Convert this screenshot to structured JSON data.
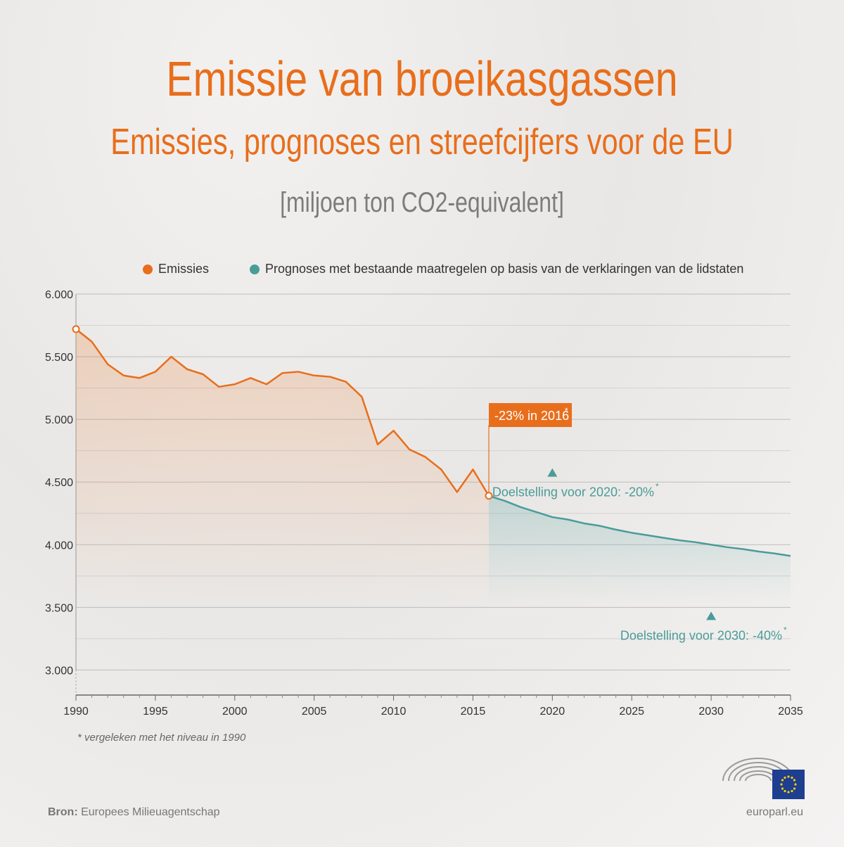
{
  "title": "Emissie van broeikasgassen",
  "subtitle": "Emissies, prognoses en streefcijfers voor de EU",
  "unit_label": "[miljoen ton CO2-equivalent]",
  "footnote": "* vergeleken met het niveau in 1990",
  "source_label": "Bron:",
  "source_value": "Europees Milieuagentschap",
  "website": "europarl.eu",
  "colors": {
    "emissions": "#e86e1c",
    "projection": "#4a9c99",
    "title": "#e86e1c",
    "unit": "#7c7c7c"
  },
  "chart_data": {
    "type": "line",
    "xlim": [
      1990,
      2035
    ],
    "ylim": [
      2800,
      6000
    ],
    "x_ticks": [
      "1990",
      "1995",
      "2000",
      "2005",
      "2010",
      "2015",
      "2020",
      "2025",
      "2030",
      "2035"
    ],
    "y_ticks": [
      "3.000",
      "3.500",
      "4.000",
      "4.500",
      "5.000",
      "5.500",
      "6.000"
    ],
    "y_tick_values": [
      3000,
      3500,
      4000,
      4500,
      5000,
      5500,
      6000
    ],
    "grid": true,
    "legend_position": "top",
    "series": [
      {
        "name": "Emissies",
        "x": [
          1990,
          1991,
          1992,
          1993,
          1994,
          1995,
          1996,
          1997,
          1998,
          1999,
          2000,
          2001,
          2002,
          2003,
          2004,
          2005,
          2006,
          2007,
          2008,
          2009,
          2010,
          2011,
          2012,
          2013,
          2014,
          2015,
          2016
        ],
        "values": [
          5720,
          5620,
          5440,
          5350,
          5330,
          5380,
          5500,
          5400,
          5360,
          5260,
          5280,
          5330,
          5280,
          5370,
          5380,
          5350,
          5340,
          5300,
          5180,
          4800,
          4910,
          4760,
          4700,
          4600,
          4420,
          4600,
          4390
        ]
      },
      {
        "name": "Prognoses met bestaande maatregelen op basis van de verklaringen van de lidstaten",
        "x": [
          2016,
          2017,
          2018,
          2019,
          2020,
          2021,
          2022,
          2023,
          2024,
          2025,
          2026,
          2027,
          2028,
          2029,
          2030,
          2031,
          2032,
          2033,
          2034,
          2035
        ],
        "values": [
          4390,
          4350,
          4300,
          4260,
          4220,
          4200,
          4170,
          4150,
          4120,
          4095,
          4075,
          4055,
          4035,
          4020,
          4000,
          3980,
          3965,
          3945,
          3930,
          3910
        ]
      }
    ],
    "annotations": [
      {
        "text": "-23% in 2016",
        "star": "*",
        "x": 2016,
        "y": 4390
      },
      {
        "text": "Doelstelling voor 2020: -20%",
        "star": "*",
        "x": 2020,
        "y": 4576
      },
      {
        "text": "Doelstelling voor 2030: -40%",
        "star": "*",
        "x": 2030,
        "y": 3432
      }
    ]
  }
}
